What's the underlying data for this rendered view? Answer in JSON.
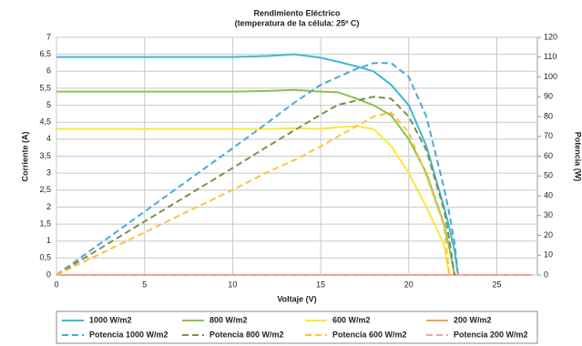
{
  "chart_data": {
    "type": "line",
    "title": "Rendimiento Eléctrico",
    "subtitle": "(temperatura de la célula: 25º C)",
    "xlabel": "Voltaje (V)",
    "ylabel": "Corriente (A)",
    "y2label": "Potencia (W)",
    "x": [
      0,
      5,
      10,
      12,
      13.5,
      15,
      16,
      17,
      18,
      19,
      20,
      21,
      22,
      22.3,
      22.6,
      22.8,
      27
    ],
    "series": [
      {
        "name": "1000 W/m2",
        "color": "#3fb8d8",
        "dashed": false,
        "values": [
          6.42,
          6.42,
          6.42,
          6.45,
          6.5,
          6.4,
          6.28,
          6.15,
          6.0,
          5.6,
          5.0,
          3.8,
          2.0,
          1.4,
          0.7,
          0,
          null
        ]
      },
      {
        "name": "800 W/m2",
        "color": "#8dc153",
        "dashed": false,
        "values": [
          5.4,
          5.4,
          5.4,
          5.42,
          5.45,
          5.4,
          5.38,
          5.2,
          5.0,
          4.7,
          4.0,
          3.0,
          1.5,
          0.8,
          0,
          null,
          null
        ]
      },
      {
        "name": "600 W/m2",
        "color": "#fbe83a",
        "dashed": false,
        "values": [
          4.3,
          4.3,
          4.3,
          4.3,
          4.32,
          4.3,
          4.35,
          4.38,
          4.3,
          3.8,
          3.0,
          2.0,
          0.9,
          0,
          null,
          null,
          null
        ]
      },
      {
        "name": "200 W/m2",
        "color": "#f5a05a",
        "dashed": false,
        "values": [
          0,
          0,
          0,
          0,
          0,
          0,
          0,
          0,
          0,
          0,
          0,
          0,
          0,
          0,
          0,
          0,
          0
        ]
      },
      {
        "name": "Potencia 1000 W/m2",
        "color": "#4aa8d8",
        "dashed": true,
        "axis": "y2",
        "values": [
          0,
          32,
          64,
          77,
          87,
          96,
          100,
          104,
          107,
          107,
          100,
          80,
          44,
          31,
          16,
          0,
          null
        ]
      },
      {
        "name": "Potencia 800 W/m2",
        "color": "#7f8f4a",
        "dashed": true,
        "axis": "y2",
        "values": [
          0,
          27,
          54,
          65,
          73,
          81,
          86,
          88,
          90,
          89,
          80,
          63,
          33,
          18,
          0,
          null,
          null
        ]
      },
      {
        "name": "Potencia 600 W/m2",
        "color": "#ffc23a",
        "dashed": true,
        "axis": "y2",
        "values": [
          0,
          21.5,
          43,
          52,
          58,
          65,
          70,
          75,
          80,
          82,
          72,
          50,
          25,
          0,
          null,
          null,
          null
        ]
      },
      {
        "name": "Potencia 200 W/m2",
        "color": "#f4a6a6",
        "dashed": true,
        "axis": "y2",
        "values": [
          0,
          0,
          0,
          0,
          0,
          0,
          0,
          0,
          0,
          0,
          0,
          0,
          0,
          0,
          0,
          0,
          0
        ]
      }
    ],
    "xlim": [
      0,
      27.3
    ],
    "xticks": [
      0,
      5,
      10,
      15,
      20,
      25
    ],
    "ylim": [
      0,
      7
    ],
    "yticks": [
      0,
      {
        "value": 0.5,
        "label": "0,5"
      },
      1,
      {
        "value": 1.5,
        "label": "1,5"
      },
      2,
      {
        "value": 2.5,
        "label": "2,5"
      },
      3,
      {
        "value": 3.5,
        "label": "3,5"
      },
      4,
      {
        "value": 4.5,
        "label": "4,5"
      },
      5,
      {
        "value": 5.5,
        "label": "5,5"
      },
      6,
      {
        "value": 6.5,
        "label": "6,5"
      },
      7
    ],
    "y2lim": [
      0,
      120
    ],
    "y2ticks": [
      0,
      10,
      20,
      30,
      40,
      50,
      60,
      70,
      80,
      90,
      100,
      110,
      120
    ],
    "grid": true,
    "legend": "bottom"
  }
}
